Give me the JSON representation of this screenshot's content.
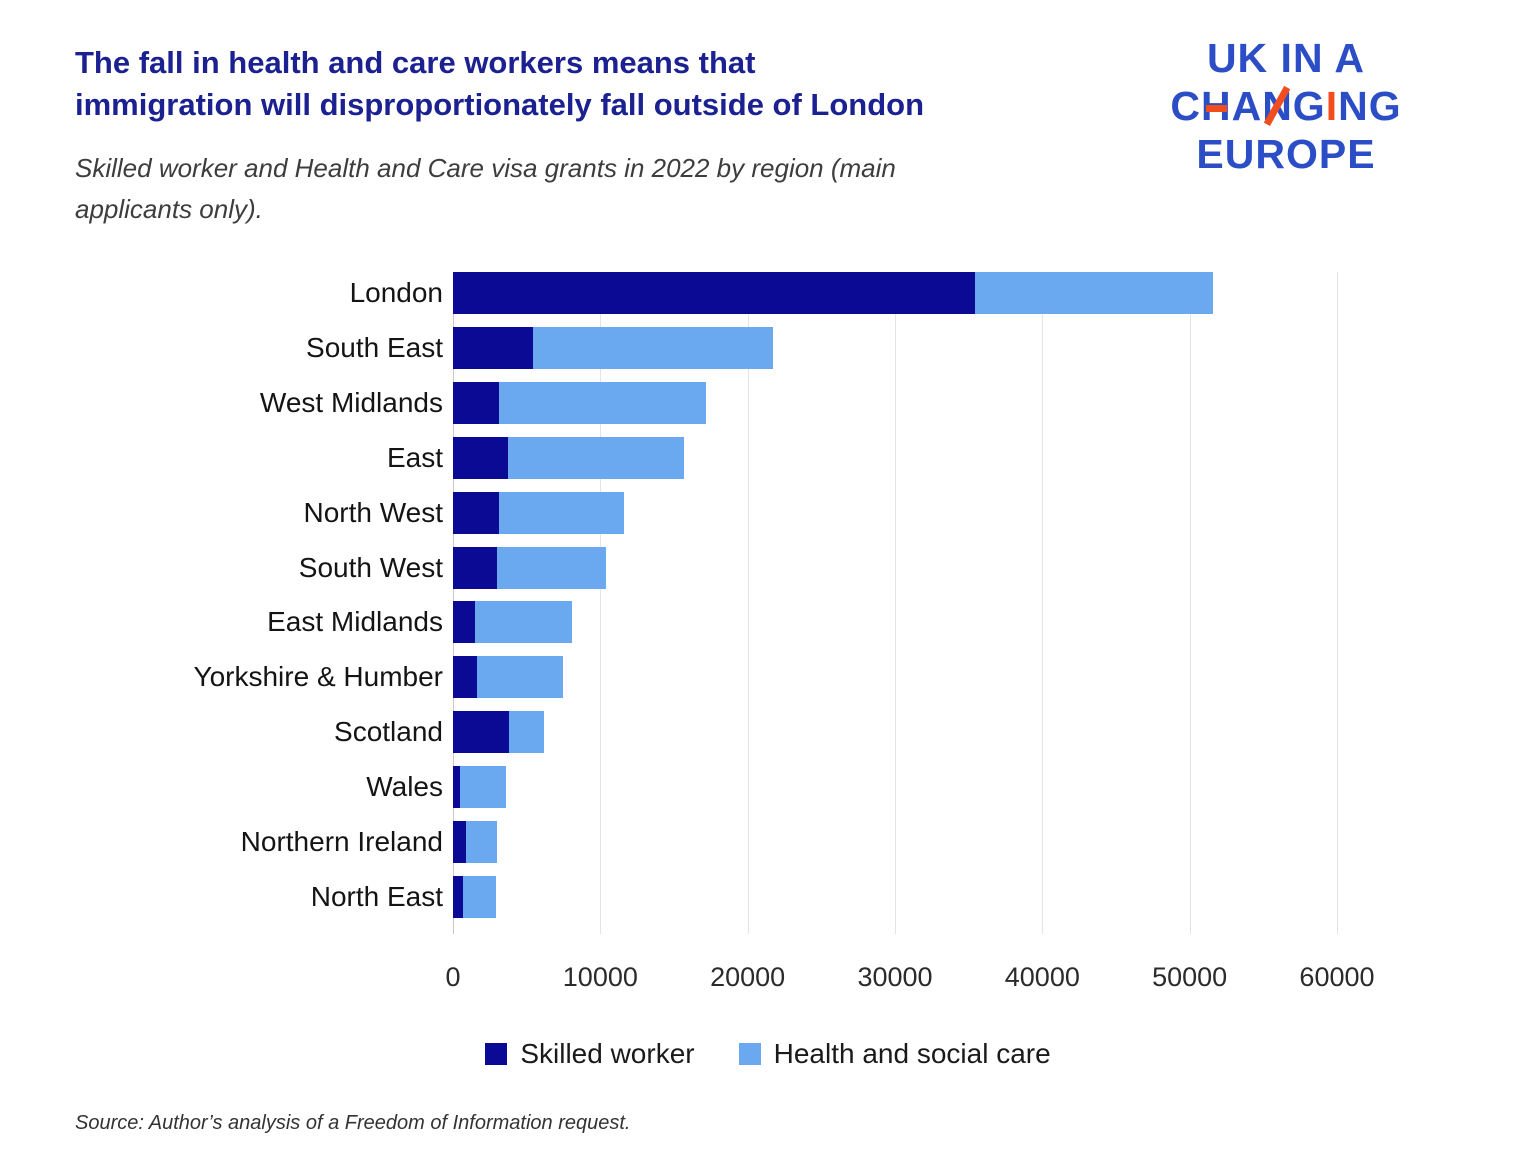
{
  "header": {
    "title_lines": [
      "The fall in health and care workers means that",
      "immigration will disproportionately fall outside of London"
    ],
    "title_color": "#1b2190",
    "subtitle": "Skilled worker and Health and Care visa grants in 2022 by region (main applicants only)."
  },
  "logo": {
    "line1": "UK IN A",
    "line2": "CHANGING",
    "line3": "EUROPE",
    "blue": "#2b4ec7",
    "orange": "#f24d1d",
    "accent_h_index": 1,
    "accent_n_index": 3,
    "accent_i_index": 5
  },
  "chart_data": {
    "type": "bar",
    "orientation": "horizontal",
    "stacked": true,
    "title": "",
    "xlabel": "",
    "ylabel": "",
    "categories": [
      "London",
      "South East",
      "West Midlands",
      "East",
      "North West",
      "South West",
      "East Midlands",
      "Yorkshire & Humber",
      "Scotland",
      "Wales",
      "Northern Ireland",
      "North East"
    ],
    "series": [
      {
        "name": "Skilled worker",
        "color": "#0a0a94",
        "values": [
          35400,
          5400,
          3100,
          3700,
          3100,
          3000,
          1500,
          1600,
          3800,
          500,
          900,
          700
        ]
      },
      {
        "name": "Health and social care",
        "color": "#6aa9f0",
        "values": [
          16200,
          16300,
          14100,
          12000,
          8500,
          7400,
          6600,
          5900,
          2400,
          3100,
          2100,
          2200
        ]
      }
    ],
    "xlim": [
      0,
      60000
    ],
    "xticks": [
      0,
      10000,
      20000,
      30000,
      40000,
      50000,
      60000
    ],
    "grid": true,
    "legend_position": "bottom"
  },
  "footer": {
    "source": "Source: Author’s analysis of a Freedom of Information request."
  }
}
